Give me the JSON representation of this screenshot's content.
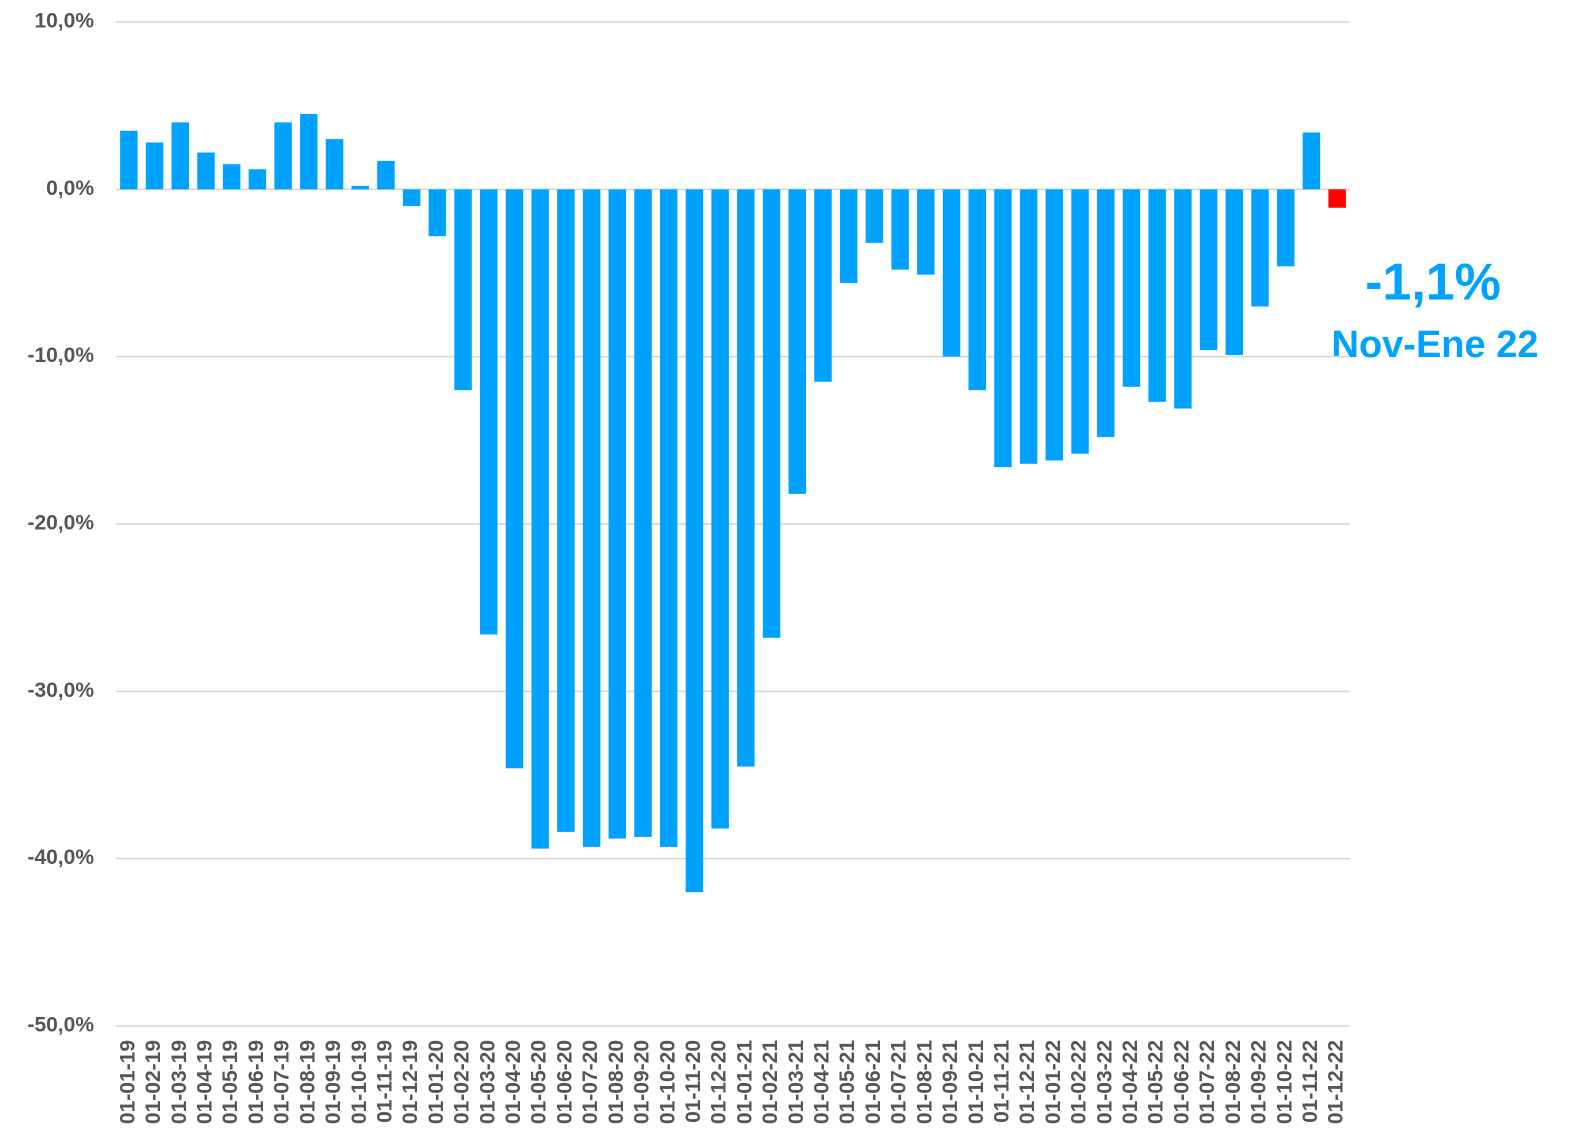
{
  "chart_data": {
    "type": "bar",
    "categories": [
      "01-01-19",
      "01-02-19",
      "01-03-19",
      "01-04-19",
      "01-05-19",
      "01-06-19",
      "01-07-19",
      "01-08-19",
      "01-09-19",
      "01-10-19",
      "01-11-19",
      "01-12-19",
      "01-01-20",
      "01-02-20",
      "01-03-20",
      "01-04-20",
      "01-05-20",
      "01-06-20",
      "01-07-20",
      "01-08-20",
      "01-09-20",
      "01-10-20",
      "01-11-20",
      "01-12-20",
      "01-01-21",
      "01-02-21",
      "01-03-21",
      "01-04-21",
      "01-05-21",
      "01-06-21",
      "01-07-21",
      "01-08-21",
      "01-09-21",
      "01-10-21",
      "01-11-21",
      "01-12-21",
      "01-01-22",
      "01-02-22",
      "01-03-22",
      "01-04-22",
      "01-05-22",
      "01-06-22",
      "01-07-22",
      "01-08-22",
      "01-09-22",
      "01-10-22",
      "01-11-22",
      "01-12-22"
    ],
    "values": [
      3.5,
      2.8,
      4.0,
      2.2,
      1.5,
      1.2,
      4.0,
      4.5,
      3.0,
      0.2,
      1.7,
      -1.0,
      -2.8,
      -12.0,
      -26.6,
      -34.6,
      -39.4,
      -38.4,
      -39.3,
      -38.8,
      -38.7,
      -39.3,
      -42.0,
      -38.2,
      -34.5,
      -26.8,
      -18.2,
      -11.5,
      -5.6,
      -3.2,
      -4.8,
      -5.1,
      -10.0,
      -12.0,
      -16.6,
      -16.4,
      -16.2,
      -15.8,
      -14.8,
      -11.8,
      -12.7,
      -13.1,
      -9.6,
      -9.9,
      -7.0,
      -4.6,
      3.4,
      -1.1
    ],
    "colors": [
      "#00a2ff",
      "#00a2ff",
      "#00a2ff",
      "#00a2ff",
      "#00a2ff",
      "#00a2ff",
      "#00a2ff",
      "#00a2ff",
      "#00a2ff",
      "#00a2ff",
      "#00a2ff",
      "#00a2ff",
      "#00a2ff",
      "#00a2ff",
      "#00a2ff",
      "#00a2ff",
      "#00a2ff",
      "#00a2ff",
      "#00a2ff",
      "#00a2ff",
      "#00a2ff",
      "#00a2ff",
      "#00a2ff",
      "#00a2ff",
      "#00a2ff",
      "#00a2ff",
      "#00a2ff",
      "#00a2ff",
      "#00a2ff",
      "#00a2ff",
      "#00a2ff",
      "#00a2ff",
      "#00a2ff",
      "#00a2ff",
      "#00a2ff",
      "#00a2ff",
      "#00a2ff",
      "#00a2ff",
      "#00a2ff",
      "#00a2ff",
      "#00a2ff",
      "#00a2ff",
      "#00a2ff",
      "#00a2ff",
      "#00a2ff",
      "#00a2ff",
      "#00a2ff",
      "#ff0000"
    ],
    "ylim": [
      -50,
      10
    ],
    "yticks": [
      {
        "value": 10,
        "label": "10,0%"
      },
      {
        "value": 0,
        "label": "0,0%"
      },
      {
        "value": -10,
        "label": "-10,0%"
      },
      {
        "value": -20,
        "label": "-20,0%"
      },
      {
        "value": -30,
        "label": "-30,0%"
      },
      {
        "value": -40,
        "label": "-40,0%"
      },
      {
        "value": -50,
        "label": "-50,0%"
      }
    ],
    "grid": true,
    "annotations": [
      "-1,1%",
      "Nov-Ene 22"
    ]
  }
}
